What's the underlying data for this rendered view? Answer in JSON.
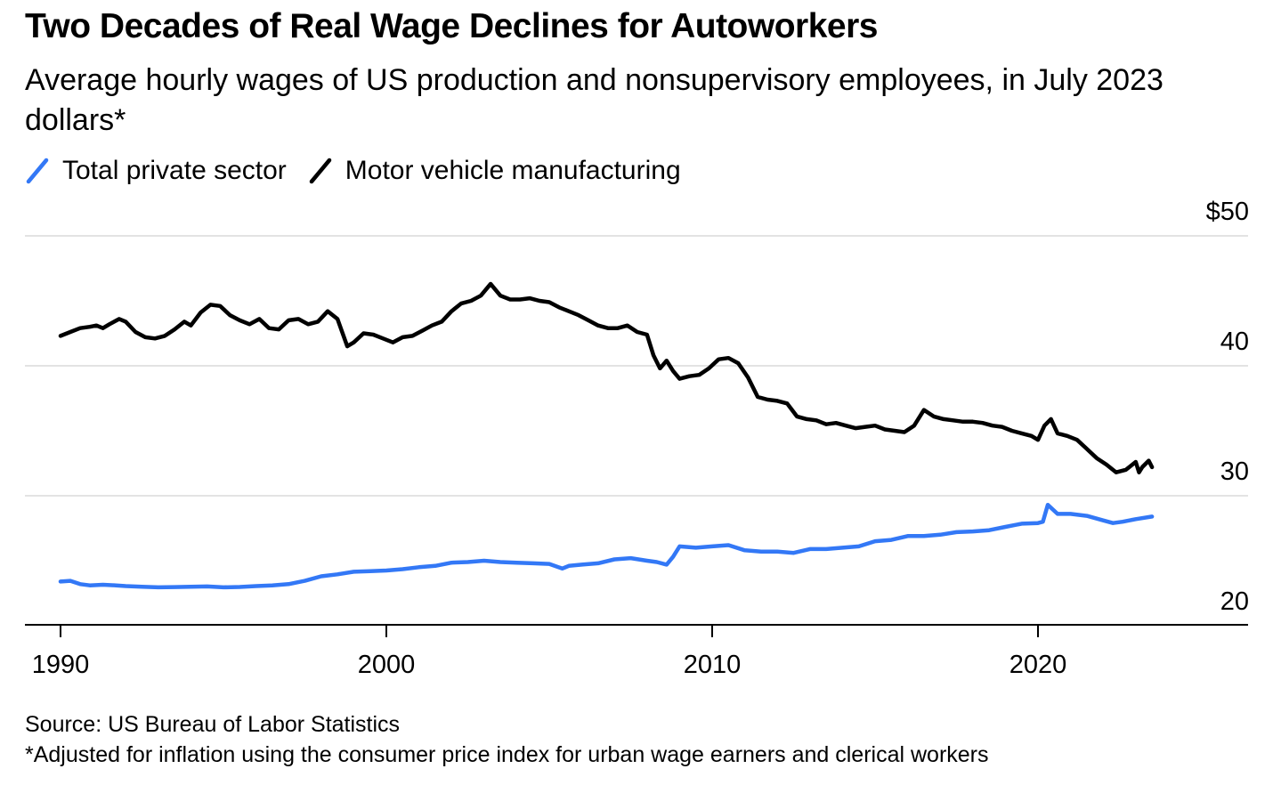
{
  "chart_data": {
    "type": "line",
    "title": "Two Decades of Real Wage Declines for Autoworkers",
    "subtitle": "Average hourly wages of US production and nonsupervisory employees, in July 2023 dollars*",
    "xlabel": "",
    "ylabel": "",
    "xlim": [
      1989,
      2026.3
    ],
    "ylim": [
      17.9,
      50
    ],
    "x_ticks": [
      1990,
      2000,
      2010,
      2020
    ],
    "x_tick_labels": [
      "1990",
      "2000",
      "2010",
      "2020"
    ],
    "y_ticks": [
      20,
      30,
      40,
      50
    ],
    "y_tick_labels": [
      "20",
      "30",
      "40",
      "$50"
    ],
    "grid": "horizontal",
    "legend_position": "top-left",
    "series": [
      {
        "name": "Total private sector",
        "color": "#3378f6",
        "x": [
          1990.0,
          1990.3,
          1990.6,
          1990.9,
          1991.3,
          1991.7,
          1992.0,
          1992.5,
          1993.0,
          1993.5,
          1994.0,
          1994.5,
          1995.0,
          1995.5,
          1996.0,
          1996.5,
          1997.0,
          1997.5,
          1998.0,
          1998.5,
          1999.0,
          1999.5,
          2000.0,
          2000.5,
          2001.0,
          2001.5,
          2002.0,
          2002.5,
          2003.0,
          2003.5,
          2004.0,
          2004.5,
          2005.0,
          2005.4,
          2005.6,
          2006.0,
          2006.5,
          2007.0,
          2007.5,
          2008.0,
          2008.3,
          2008.6,
          2008.8,
          2009.0,
          2009.5,
          2010.0,
          2010.5,
          2011.0,
          2011.5,
          2012.0,
          2012.5,
          2013.0,
          2013.5,
          2014.0,
          2014.5,
          2015.0,
          2015.5,
          2016.0,
          2016.5,
          2017.0,
          2017.5,
          2018.0,
          2018.5,
          2019.0,
          2019.5,
          2020.0,
          2020.15,
          2020.3,
          2020.6,
          2021.0,
          2021.5,
          2022.0,
          2022.3,
          2022.6,
          2023.0,
          2023.5
        ],
        "values": [
          23.4,
          23.45,
          23.2,
          23.1,
          23.15,
          23.1,
          23.05,
          23.0,
          22.95,
          22.97,
          23.0,
          23.02,
          22.95,
          22.98,
          23.05,
          23.1,
          23.2,
          23.45,
          23.8,
          23.95,
          24.15,
          24.2,
          24.25,
          24.35,
          24.5,
          24.6,
          24.85,
          24.9,
          25.0,
          24.9,
          24.85,
          24.8,
          24.75,
          24.4,
          24.6,
          24.7,
          24.8,
          25.1,
          25.2,
          25.0,
          24.9,
          24.7,
          25.3,
          26.1,
          26.0,
          26.1,
          26.2,
          25.8,
          25.7,
          25.7,
          25.6,
          25.9,
          25.9,
          26.0,
          26.1,
          26.5,
          26.6,
          26.9,
          26.9,
          27.0,
          27.2,
          27.25,
          27.35,
          27.6,
          27.85,
          27.9,
          28.0,
          29.3,
          28.6,
          28.6,
          28.45,
          28.1,
          27.9,
          28.0,
          28.2,
          28.4
        ]
      },
      {
        "name": "Motor vehicle manufacturing",
        "color": "#000000",
        "x": [
          1990.0,
          1990.3,
          1990.6,
          1990.9,
          1991.1,
          1991.3,
          1991.5,
          1991.8,
          1992.0,
          1992.3,
          1992.6,
          1992.9,
          1993.2,
          1993.5,
          1993.8,
          1994.0,
          1994.3,
          1994.6,
          1994.9,
          1995.2,
          1995.5,
          1995.8,
          1996.1,
          1996.4,
          1996.7,
          1997.0,
          1997.3,
          1997.6,
          1997.9,
          1998.2,
          1998.5,
          1998.8,
          1999.0,
          1999.3,
          1999.6,
          1999.9,
          2000.2,
          2000.5,
          2000.8,
          2001.1,
          2001.4,
          2001.7,
          2002.0,
          2002.3,
          2002.6,
          2002.9,
          2003.2,
          2003.5,
          2003.8,
          2004.1,
          2004.4,
          2004.7,
          2005.0,
          2005.3,
          2005.6,
          2005.9,
          2006.2,
          2006.5,
          2006.8,
          2007.1,
          2007.4,
          2007.7,
          2008.0,
          2008.2,
          2008.4,
          2008.6,
          2008.8,
          2009.0,
          2009.3,
          2009.6,
          2009.9,
          2010.2,
          2010.5,
          2010.8,
          2011.1,
          2011.4,
          2011.7,
          2012.0,
          2012.3,
          2012.6,
          2012.9,
          2013.2,
          2013.5,
          2013.8,
          2014.1,
          2014.4,
          2014.7,
          2015.0,
          2015.3,
          2015.6,
          2015.9,
          2016.2,
          2016.5,
          2016.8,
          2017.1,
          2017.4,
          2017.7,
          2018.0,
          2018.3,
          2018.6,
          2018.9,
          2019.2,
          2019.5,
          2019.8,
          2020.0,
          2020.2,
          2020.4,
          2020.6,
          2020.9,
          2021.2,
          2021.5,
          2021.8,
          2022.1,
          2022.4,
          2022.7,
          2023.0,
          2023.1,
          2023.2,
          2023.4,
          2023.5
        ],
        "values": [
          42.3,
          42.6,
          42.9,
          43.0,
          43.1,
          42.9,
          43.2,
          43.6,
          43.4,
          42.6,
          42.2,
          42.1,
          42.3,
          42.8,
          43.4,
          43.1,
          44.1,
          44.7,
          44.6,
          43.9,
          43.5,
          43.2,
          43.6,
          42.9,
          42.8,
          43.5,
          43.6,
          43.2,
          43.4,
          44.2,
          43.6,
          41.5,
          41.8,
          42.5,
          42.4,
          42.1,
          41.8,
          42.2,
          42.3,
          42.7,
          43.1,
          43.4,
          44.2,
          44.8,
          45.0,
          45.4,
          46.3,
          45.4,
          45.1,
          45.1,
          45.2,
          45.0,
          44.9,
          44.5,
          44.2,
          43.9,
          43.5,
          43.1,
          42.9,
          42.9,
          43.1,
          42.6,
          42.4,
          40.8,
          39.8,
          40.4,
          39.6,
          39.0,
          39.2,
          39.3,
          39.8,
          40.5,
          40.6,
          40.2,
          39.1,
          37.6,
          37.4,
          37.3,
          37.1,
          36.1,
          35.9,
          35.8,
          35.5,
          35.6,
          35.4,
          35.2,
          35.3,
          35.4,
          35.1,
          35.0,
          34.9,
          35.4,
          36.6,
          36.1,
          35.9,
          35.8,
          35.7,
          35.7,
          35.6,
          35.4,
          35.3,
          35.0,
          34.8,
          34.6,
          34.3,
          35.4,
          35.9,
          34.8,
          34.6,
          34.3,
          33.6,
          32.9,
          32.4,
          31.8,
          32.0,
          32.6,
          31.8,
          32.2,
          32.7,
          32.2
        ]
      }
    ],
    "source": "Source: US Bureau of Labor Statistics",
    "note": "*Adjusted for inflation using the consumer price index for urban wage earners and clerical workers"
  }
}
